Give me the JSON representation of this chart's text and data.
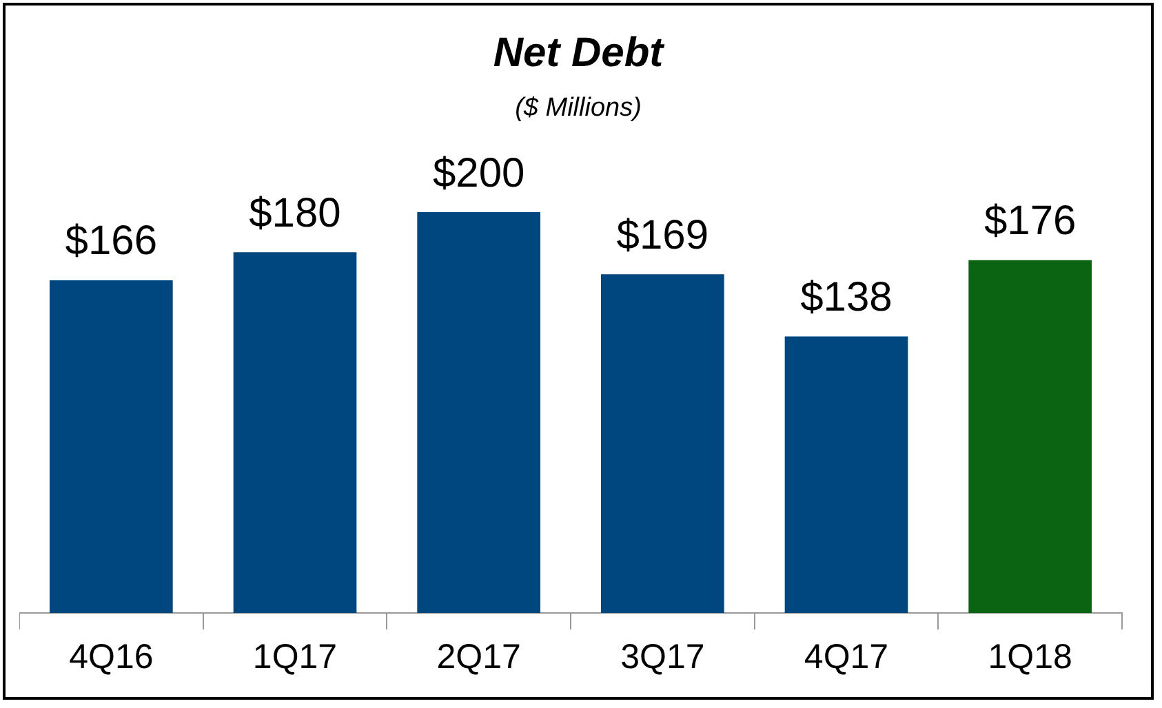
{
  "chart_data": {
    "type": "bar",
    "title": "Net Debt",
    "subtitle": "($ Millions)",
    "categories": [
      "4Q16",
      "1Q17",
      "2Q17",
      "3Q17",
      "4Q17",
      "1Q18"
    ],
    "values": [
      166,
      180,
      200,
      169,
      138,
      176
    ],
    "colors": [
      "#00467f",
      "#00467f",
      "#00467f",
      "#00467f",
      "#00467f",
      "#0b6412"
    ],
    "value_labels": [
      "$166",
      "$180",
      "$200",
      "$169",
      "$138",
      "$176"
    ],
    "tick_labels": "x"
  }
}
